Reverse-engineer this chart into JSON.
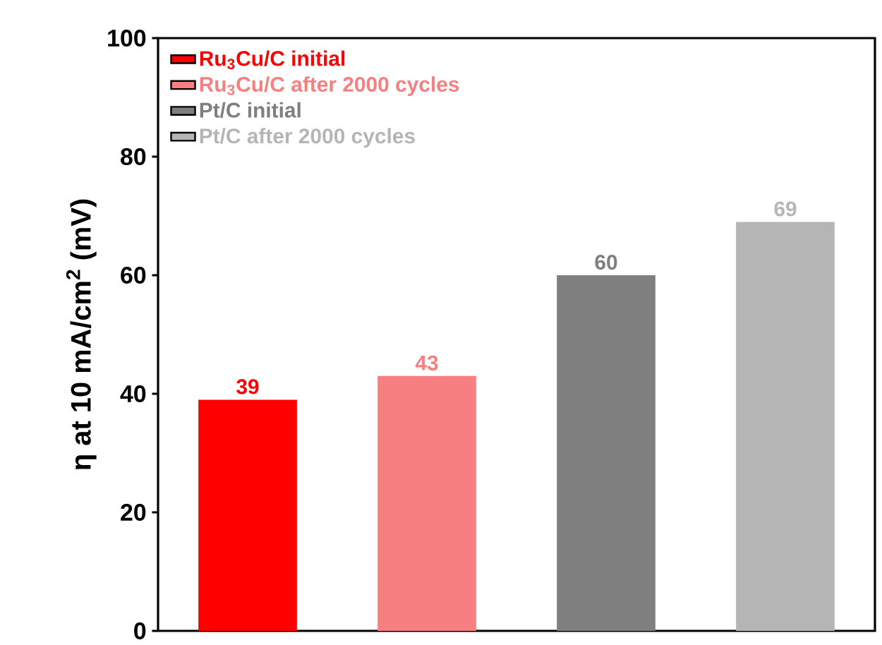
{
  "chart_data": {
    "type": "bar",
    "ylabel": "η at 10 mA/cm$^{2}$ (mV)",
    "categories": [
      null,
      null,
      null,
      null
    ],
    "series": [
      {
        "name": "Ru$_{3}$Cu/C initial",
        "color": "#ff0000",
        "values": [
          39,
          null,
          null,
          null
        ]
      },
      {
        "name": "Ru$_{3}$Cu/C after 2000 cycles",
        "color": "#f87f7f",
        "values": [
          null,
          43,
          null,
          null
        ]
      },
      {
        "name": "Pt/C initial",
        "color": "#7f7f7f",
        "values": [
          null,
          null,
          60,
          null
        ]
      },
      {
        "name": "Pt/C after 2000 cycles",
        "color": "#b5b5b5",
        "values": [
          null,
          null,
          null,
          69
        ]
      }
    ],
    "ylim": [
      0,
      100
    ],
    "yticks": [
      0,
      20,
      40,
      60,
      80,
      100
    ],
    "stacked": true,
    "data_labels": true,
    "legend": "top left",
    "tick_labels": "y"
  }
}
